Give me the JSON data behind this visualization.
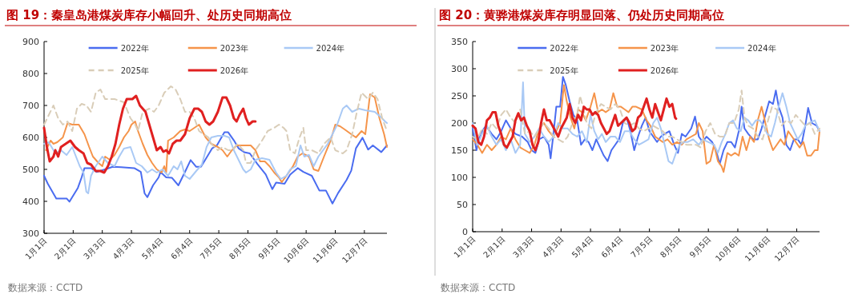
{
  "chart_data": [
    {
      "type": "line",
      "title": "图 19：秦皇岛港煤炭库存小幅回升、处历史同期高位",
      "annotations": [
        "数据来源：CCTD"
      ],
      "legend": "top",
      "grid": false,
      "xlim": [
        "--01-01",
        "--12-31"
      ],
      "ylim": [
        300,
        900
      ],
      "yticks": [
        300,
        400,
        500,
        600,
        700,
        800,
        900
      ],
      "xticks": [
        {
          "value": "--01-01",
          "label": "1月1日"
        },
        {
          "value": "--02-01",
          "label": "2月1日"
        },
        {
          "value": "--03-03",
          "label": "3月3日"
        },
        {
          "value": "--04-03",
          "label": "4月3日"
        },
        {
          "value": "--05-04",
          "label": "5月4日"
        },
        {
          "value": "--06-04",
          "label": "6月4日"
        },
        {
          "value": "--07-05",
          "label": "7月5日"
        },
        {
          "value": "--08-05",
          "label": "8月5日"
        },
        {
          "value": "--09-05",
          "label": "9月5日"
        },
        {
          "value": "--10-06",
          "label": "10月6日"
        },
        {
          "value": "--11-06",
          "label": "11月6日"
        },
        {
          "value": "--12-07",
          "label": "12月7日"
        }
      ],
      "series": [
        {
          "name": "2022年",
          "color": "#4a6cf0",
          "x": [
            "--01-01",
            "--01-05",
            "--01-14",
            "--01-25",
            "--01-28",
            "--02-06",
            "--02-10",
            "--02-13",
            "--02-20",
            "--02-26",
            "--03-08",
            "--03-14",
            "--03-23",
            "--04-06",
            "--04-13",
            "--04-17",
            "--04-20",
            "--04-26",
            "--05-02",
            "--05-04",
            "--05-10",
            "--05-16",
            "--05-23",
            "--05-30",
            "--06-05",
            "--06-11",
            "--06-16",
            "--06-22",
            "--06-28",
            "--07-03",
            "--07-11",
            "--07-15",
            "--07-21",
            "--07-26",
            "--08-01",
            "--08-07",
            "--08-15",
            "--08-24",
            "--08-31",
            "--09-04",
            "--09-13",
            "--09-19",
            "--09-27",
            "--10-03",
            "--10-12",
            "--10-20",
            "--10-27",
            "--11-03",
            "--11-09",
            "--11-18",
            "--11-23",
            "--11-28",
            "--12-05",
            "--12-11",
            "--12-16",
            "--12-25",
            "--12-31"
          ],
          "values": [
            480,
            455,
            409,
            409,
            399,
            442,
            475,
            504,
            504,
            492,
            502,
            508,
            507,
            504,
            492,
            425,
            413,
            450,
            475,
            492,
            475,
            474,
            450,
            492,
            529,
            508,
            508,
            537,
            566,
            575,
            616,
            616,
            591,
            566,
            554,
            550,
            517,
            484,
            438,
            459,
            455,
            484,
            504,
            492,
            480,
            434,
            434,
            393,
            426,
            467,
            496,
            566,
            599,
            562,
            575,
            554,
            575
          ]
        },
        {
          "name": "2023年",
          "color": "#f5944a",
          "x": [
            "--01-03",
            "--01-08",
            "--01-11",
            "--01-15",
            "--01-21",
            "--01-26",
            "--01-31",
            "--02-07",
            "--02-13",
            "--02-18",
            "--02-22",
            "--02-28",
            "--03-03",
            "--03-06",
            "--03-11",
            "--03-16",
            "--03-21",
            "--03-26",
            "--03-31",
            "--04-03",
            "--04-07",
            "--04-10",
            "--04-15",
            "--04-20",
            "--04-25",
            "--04-30",
            "--05-05",
            "--05-08",
            "--05-10",
            "--05-12",
            "--05-18",
            "--05-25",
            "--05-30",
            "--06-04",
            "--06-09",
            "--06-14",
            "--06-21",
            "--06-27",
            "--07-04",
            "--07-09",
            "--07-14",
            "--07-19",
            "--07-24",
            "--07-31",
            "--08-08",
            "--08-13",
            "--08-18",
            "--08-23",
            "--08-28",
            "--09-02",
            "--09-07",
            "--09-10",
            "--09-15",
            "--09-22",
            "--09-27",
            "--10-02",
            "--10-09",
            "--10-14",
            "--10-19",
            "--10-25",
            "--11-01",
            "--11-06",
            "--11-11",
            "--11-16",
            "--11-23",
            "--11-28",
            "--12-04",
            "--12-08",
            "--12-13",
            "--12-18",
            "--12-23",
            "--12-28",
            "--12-31"
          ],
          "values": [
            560,
            590,
            580,
            585,
            600,
            645,
            640,
            640,
            610,
            570,
            540,
            520,
            510,
            540,
            530,
            545,
            570,
            600,
            620,
            640,
            650,
            620,
            580,
            545,
            520,
            500,
            490,
            510,
            490,
            590,
            600,
            620,
            625,
            620,
            630,
            640,
            600,
            580,
            570,
            560,
            540,
            560,
            575,
            575,
            575,
            560,
            525,
            525,
            510,
            490,
            475,
            460,
            480,
            510,
            540,
            550,
            540,
            500,
            495,
            540,
            590,
            640,
            635,
            625,
            610,
            600,
            620,
            610,
            735,
            725,
            660,
            610,
            570
          ]
        },
        {
          "name": "2024年",
          "color": "#a9c9f5",
          "x": [
            "--01-01",
            "--01-06",
            "--01-13",
            "--01-19",
            "--01-25",
            "--01-31",
            "--02-08",
            "--02-12",
            "--02-15",
            "--02-17",
            "--02-20",
            "--02-25",
            "--03-03",
            "--03-09",
            "--03-16",
            "--03-21",
            "--03-26",
            "--04-02",
            "--04-08",
            "--04-14",
            "--04-20",
            "--04-25",
            "--04-30",
            "--05-06",
            "--05-12",
            "--05-18",
            "--05-22",
            "--05-26",
            "--05-30",
            "--06-04",
            "--06-11",
            "--06-17",
            "--06-22",
            "--06-27",
            "--07-04",
            "--07-11",
            "--07-16",
            "--07-21",
            "--07-26",
            "--07-31",
            "--08-03",
            "--08-08",
            "--08-13",
            "--08-20",
            "--08-28",
            "--09-04",
            "--09-09",
            "--09-15",
            "--09-19",
            "--09-25",
            "--09-30",
            "--10-04",
            "--10-09",
            "--10-14",
            "--10-19",
            "--10-24",
            "--10-29",
            "--11-03",
            "--11-08",
            "--11-14",
            "--11-18",
            "--11-24",
            "--12-01",
            "--12-08",
            "--12-18",
            "--12-24",
            "--12-29",
            "--12-31"
          ],
          "values": [
            580,
            585,
            550,
            560,
            545,
            570,
            510,
            490,
            430,
            425,
            480,
            510,
            540,
            520,
            510,
            540,
            565,
            570,
            520,
            510,
            490,
            500,
            490,
            500,
            480,
            510,
            500,
            525,
            480,
            470,
            495,
            515,
            570,
            600,
            605,
            605,
            600,
            560,
            530,
            500,
            490,
            500,
            530,
            535,
            530,
            490,
            470,
            480,
            500,
            510,
            575,
            540,
            545,
            510,
            540,
            560,
            580,
            610,
            640,
            690,
            700,
            680,
            690,
            685,
            680,
            665,
            650,
            645
          ]
        },
        {
          "name": "2025年",
          "color": "#d9cdb8",
          "line_style": "dashed",
          "x": [
            "--01-01",
            "--01-06",
            "--01-11",
            "--01-16",
            "--01-21",
            "--01-26",
            "--01-31",
            "--02-05",
            "--02-10",
            "--02-15",
            "--02-20",
            "--02-25",
            "--03-01",
            "--03-06",
            "--03-16",
            "--03-26",
            "--04-02",
            "--04-07",
            "--04-10",
            "--04-15",
            "--04-22",
            "--04-27",
            "--05-02",
            "--05-08",
            "--05-15",
            "--05-20",
            "--05-25",
            "--05-30",
            "--06-04",
            "--06-09",
            "--06-14",
            "--06-19",
            "--06-24",
            "--06-27",
            "--07-04",
            "--07-09",
            "--07-15",
            "--07-19",
            "--07-25",
            "--07-31",
            "--08-03",
            "--08-08",
            "--08-13",
            "--08-20",
            "--08-26",
            "--09-02",
            "--09-07",
            "--09-12",
            "--09-15",
            "--09-19",
            "--09-24",
            "--09-29",
            "--10-03",
            "--10-06",
            "--10-12",
            "--10-19",
            "--10-25",
            "--11-01",
            "--11-06",
            "--11-14",
            "--11-18",
            "--11-24",
            "--11-29",
            "--12-04",
            "--12-11",
            "--12-16",
            "--12-21",
            "--12-26",
            "--12-31"
          ],
          "values": [
            640,
            670,
            700,
            660,
            640,
            650,
            620,
            690,
            705,
            700,
            680,
            740,
            750,
            720,
            720,
            710,
            660,
            640,
            620,
            680,
            690,
            680,
            700,
            740,
            760,
            750,
            720,
            680,
            680,
            660,
            620,
            610,
            600,
            580,
            560,
            570,
            560,
            560,
            580,
            560,
            520,
            520,
            560,
            590,
            620,
            630,
            640,
            630,
            620,
            560,
            550,
            600,
            630,
            560,
            560,
            550,
            580,
            600,
            560,
            550,
            560,
            610,
            680,
            740,
            720,
            740,
            720,
            660,
            620
          ]
        },
        {
          "name": "2026年",
          "color": "#e02020",
          "x": [
            "--01-01",
            "--01-04",
            "--01-07",
            "--01-11",
            "--01-13",
            "--01-16",
            "--01-19",
            "--01-24",
            "--01-29",
            "--02-03",
            "--02-07",
            "--02-12",
            "--02-16",
            "--02-20",
            "--02-25",
            "--03-01",
            "--03-05",
            "--03-09",
            "--03-13",
            "--03-17",
            "--03-21",
            "--03-25",
            "--03-29",
            "--04-04",
            "--04-08",
            "--04-12",
            "--04-18",
            "--04-22",
            "--04-26",
            "--04-30",
            "--05-04",
            "--05-07",
            "--05-10",
            "--05-13",
            "--05-17",
            "--05-21",
            "--05-25",
            "--05-30",
            "--06-04",
            "--06-09",
            "--06-13",
            "--06-17",
            "--06-21",
            "--06-25",
            "--06-29",
            "--07-04",
            "--07-09",
            "--07-13",
            "--07-17",
            "--07-21",
            "--07-24",
            "--07-27",
            "--07-31",
            "--08-03",
            "--08-06",
            "--08-10",
            "--08-13"
          ],
          "values": [
            630,
            570,
            525,
            540,
            560,
            540,
            570,
            580,
            590,
            570,
            560,
            550,
            520,
            515,
            495,
            495,
            490,
            510,
            540,
            580,
            640,
            690,
            720,
            720,
            730,
            700,
            680,
            640,
            600,
            560,
            570,
            555,
            560,
            550,
            580,
            590,
            590,
            610,
            660,
            690,
            690,
            680,
            650,
            640,
            650,
            680,
            725,
            725,
            700,
            660,
            650,
            670,
            690,
            660,
            640,
            650,
            650
          ]
        }
      ]
    },
    {
      "type": "line",
      "title": "图 20：黄骅港煤炭库存明显回落、仍处历史同期高位",
      "annotations": [
        "数据来源：CCTD"
      ],
      "legend": "top",
      "grid": false,
      "xlim": [
        "--01-01",
        "--12-31"
      ],
      "ylim": [
        0,
        350
      ],
      "yticks": [
        0,
        50,
        100,
        150,
        200,
        250,
        300,
        350
      ],
      "xticks": [
        {
          "value": "--01-01",
          "label": "1月1日"
        },
        {
          "value": "--02-01",
          "label": "2月1日"
        },
        {
          "value": "--03-03",
          "label": "3月3日"
        },
        {
          "value": "--04-03",
          "label": "4月3日"
        },
        {
          "value": "--05-04",
          "label": "5月4日"
        },
        {
          "value": "--06-04",
          "label": "6月4日"
        },
        {
          "value": "--07-05",
          "label": "7月5日"
        },
        {
          "value": "--08-05",
          "label": "8月5日"
        },
        {
          "value": "--09-05",
          "label": "9月5日"
        },
        {
          "value": "--10-06",
          "label": "10月6日"
        },
        {
          "value": "--11-06",
          "label": "11月6日"
        },
        {
          "value": "--12-07",
          "label": "12月7日"
        }
      ],
      "series": [
        {
          "name": "2022年",
          "color": "#4a6cf0",
          "x": [
            "--01-01",
            "--01-05",
            "--01-09",
            "--01-15",
            "--01-21",
            "--01-26",
            "--01-31",
            "--02-05",
            "--02-10",
            "--02-15",
            "--02-22",
            "--02-28",
            "--03-03",
            "--03-07",
            "--03-11",
            "--03-16",
            "--03-21",
            "--03-23",
            "--03-26",
            "--03-29",
            "--04-02",
            "--04-05",
            "--04-08",
            "--04-12",
            "--04-16",
            "--04-20",
            "--04-24",
            "--04-28",
            "--05-02",
            "--05-06",
            "--05-10",
            "--05-14",
            "--05-18",
            "--05-22",
            "--05-26",
            "--05-30",
            "--06-03",
            "--06-07",
            "--06-11",
            "--06-15",
            "--06-19",
            "--06-23",
            "--06-27",
            "--07-01",
            "--07-05",
            "--07-09",
            "--07-13",
            "--07-17",
            "--07-21",
            "--07-26",
            "--07-31",
            "--08-04",
            "--08-08",
            "--08-12",
            "--08-18",
            "--08-22",
            "--08-26",
            "--08-30",
            "--09-03",
            "--09-09",
            "--09-13",
            "--09-17",
            "--09-21",
            "--09-25",
            "--09-29",
            "--10-03",
            "--10-07",
            "--10-10",
            "--10-13",
            "--10-17",
            "--10-22",
            "--10-27",
            "--10-31",
            "--11-04",
            "--11-08",
            "--11-12",
            "--11-15",
            "--11-18",
            "--11-22",
            "--11-26",
            "--11-30",
            "--12-04",
            "--12-08",
            "--12-12",
            "--12-16",
            "--12-19",
            "--12-23",
            "--12-28",
            "--12-31"
          ],
          "values": [
            190,
            150,
            180,
            195,
            180,
            170,
            185,
            205,
            190,
            180,
            175,
            165,
            150,
            145,
            170,
            175,
            160,
            135,
            180,
            230,
            230,
            285,
            270,
            240,
            215,
            205,
            160,
            170,
            165,
            150,
            170,
            155,
            140,
            130,
            150,
            160,
            170,
            200,
            210,
            185,
            150,
            175,
            195,
            210,
            185,
            175,
            165,
            175,
            180,
            185,
            160,
            145,
            180,
            175,
            190,
            212,
            175,
            165,
            175,
            165,
            150,
            125,
            150,
            165,
            165,
            155,
            185,
            230,
            190,
            180,
            170,
            170,
            190,
            215,
            240,
            235,
            260,
            230,
            210,
            160,
            150,
            170,
            170,
            160,
            195,
            228,
            200,
            195,
            185
          ]
        },
        {
          "name": "2023年",
          "color": "#f5944a",
          "x": [
            "--01-01",
            "--01-06",
            "--01-11",
            "--01-16",
            "--01-21",
            "--01-26",
            "--01-31",
            "--02-05",
            "--02-10",
            "--02-15",
            "--02-20",
            "--02-25",
            "--03-01",
            "--03-06",
            "--03-11",
            "--03-16",
            "--03-21",
            "--03-26",
            "--03-29",
            "--04-02",
            "--04-06",
            "--04-09",
            "--04-13",
            "--04-17",
            "--04-21",
            "--04-25",
            "--04-29",
            "--05-04",
            "--05-08",
            "--05-12",
            "--05-16",
            "--05-20",
            "--05-24",
            "--05-28",
            "--06-01",
            "--06-05",
            "--06-09",
            "--06-13",
            "--06-17",
            "--06-21",
            "--06-27",
            "--07-02",
            "--07-06",
            "--07-11",
            "--07-15",
            "--07-19",
            "--07-24",
            "--07-29",
            "--08-03",
            "--08-08",
            "--08-13",
            "--08-18",
            "--08-23",
            "--08-26",
            "--08-30",
            "--09-03",
            "--09-07",
            "--09-11",
            "--09-15",
            "--09-19",
            "--09-21",
            "--09-25",
            "--09-29",
            "--10-03",
            "--10-07",
            "--10-11",
            "--10-15",
            "--10-19",
            "--10-23",
            "--10-27",
            "--10-31",
            "--11-04",
            "--11-08",
            "--11-12",
            "--11-16",
            "--11-20",
            "--11-24",
            "--11-28",
            "--12-02",
            "--12-06",
            "--12-10",
            "--12-14",
            "--12-18",
            "--12-22",
            "--12-26",
            "--12-29",
            "--12-31"
          ],
          "values": [
            170,
            160,
            145,
            160,
            150,
            160,
            175,
            170,
            190,
            170,
            155,
            150,
            145,
            160,
            190,
            200,
            185,
            175,
            185,
            200,
            270,
            240,
            210,
            190,
            225,
            220,
            205,
            230,
            255,
            220,
            225,
            220,
            225,
            255,
            230,
            230,
            225,
            220,
            230,
            230,
            225,
            205,
            195,
            175,
            170,
            165,
            170,
            160,
            165,
            160,
            170,
            175,
            180,
            200,
            185,
            125,
            130,
            160,
            130,
            120,
            110,
            145,
            140,
            145,
            140,
            175,
            150,
            175,
            165,
            205,
            230,
            200,
            170,
            150,
            160,
            170,
            160,
            185,
            175,
            165,
            155,
            165,
            140,
            140,
            150,
            150,
            185
          ]
        },
        {
          "name": "2024年",
          "color": "#a9c9f5",
          "x": [
            "--01-01",
            "--01-06",
            "--01-11",
            "--01-16",
            "--01-21",
            "--01-26",
            "--01-31",
            "--02-05",
            "--02-10",
            "--02-15",
            "--02-20",
            "--02-23",
            "--02-25",
            "--03-01",
            "--03-06",
            "--03-11",
            "--03-16",
            "--03-21",
            "--03-26",
            "--03-31",
            "--04-05",
            "--04-10",
            "--04-15",
            "--04-20",
            "--04-25",
            "--04-30",
            "--05-04",
            "--05-08",
            "--05-12",
            "--05-16",
            "--05-20",
            "--05-25",
            "--05-30",
            "--06-04",
            "--06-09",
            "--06-14",
            "--06-19",
            "--06-24",
            "--06-29",
            "--07-04",
            "--07-09",
            "--07-13",
            "--07-17",
            "--07-21",
            "--07-25",
            "--07-29",
            "--08-02",
            "--08-06",
            "--08-10",
            "--08-14",
            "--08-20",
            "--08-26",
            "--08-30",
            "--09-05",
            "--09-11",
            "--09-15",
            "--09-19",
            "--09-23",
            "--09-27",
            "--10-01",
            "--10-05",
            "--10-09",
            "--10-13",
            "--10-17",
            "--10-21",
            "--10-25",
            "--10-29",
            "--11-02",
            "--11-06",
            "--11-10",
            "--11-14",
            "--11-18",
            "--11-22",
            "--11-26",
            "--11-30",
            "--12-04",
            "--12-08",
            "--12-12",
            "--12-16",
            "--12-20",
            "--12-26",
            "--12-31"
          ],
          "values": [
            200,
            160,
            180,
            195,
            175,
            160,
            170,
            150,
            170,
            145,
            160,
            275,
            180,
            165,
            175,
            190,
            175,
            165,
            175,
            200,
            190,
            190,
            180,
            175,
            185,
            165,
            215,
            185,
            170,
            180,
            165,
            175,
            175,
            165,
            185,
            185,
            170,
            160,
            165,
            170,
            200,
            210,
            190,
            160,
            130,
            125,
            145,
            160,
            165,
            165,
            170,
            160,
            170,
            165,
            160,
            145,
            165,
            180,
            200,
            205,
            190,
            185,
            210,
            205,
            195,
            205,
            205,
            195,
            180,
            175,
            200,
            230,
            255,
            230,
            200,
            185,
            170,
            180,
            195,
            200,
            205,
            185
          ]
        },
        {
          "name": "2025年",
          "color": "#d9cdb8",
          "line_style": "dashed",
          "x": [
            "--01-01",
            "--01-06",
            "--01-11",
            "--01-16",
            "--01-21",
            "--01-26",
            "--01-31",
            "--02-05",
            "--02-10",
            "--02-15",
            "--02-20",
            "--02-25",
            "--03-01",
            "--03-06",
            "--03-11",
            "--03-16",
            "--03-21",
            "--03-26",
            "--03-31",
            "--04-05",
            "--04-10",
            "--04-15",
            "--04-20",
            "--04-23",
            "--04-26",
            "--04-30",
            "--05-05",
            "--05-10",
            "--05-15",
            "--05-20",
            "--05-25",
            "--05-30",
            "--06-04",
            "--06-09",
            "--06-14",
            "--06-19",
            "--06-24",
            "--06-29",
            "--07-04",
            "--07-09",
            "--07-14",
            "--07-19",
            "--07-24",
            "--07-29",
            "--08-03",
            "--08-08",
            "--08-13",
            "--08-18",
            "--08-23",
            "--08-28",
            "--09-02",
            "--09-07",
            "--09-12",
            "--09-17",
            "--09-22",
            "--09-27",
            "--10-02",
            "--10-07",
            "--10-10",
            "--10-13",
            "--10-17",
            "--10-22",
            "--10-27",
            "--11-01",
            "--11-06",
            "--11-11",
            "--11-16",
            "--11-21",
            "--11-26",
            "--12-01",
            "--12-06",
            "--12-11",
            "--12-16",
            "--12-21",
            "--12-26",
            "--12-31"
          ],
          "values": [
            175,
            170,
            190,
            180,
            200,
            190,
            215,
            225,
            210,
            200,
            225,
            180,
            185,
            175,
            190,
            200,
            190,
            175,
            170,
            165,
            175,
            200,
            215,
            250,
            230,
            200,
            190,
            220,
            235,
            230,
            225,
            235,
            225,
            200,
            195,
            200,
            190,
            185,
            190,
            195,
            190,
            185,
            175,
            175,
            170,
            165,
            160,
            160,
            160,
            155,
            185,
            200,
            180,
            175,
            175,
            200,
            200,
            225,
            260,
            210,
            195,
            190,
            175,
            170,
            200,
            230,
            225,
            195,
            205,
            200,
            215,
            205,
            195,
            200,
            180,
            190
          ]
        },
        {
          "name": "2026年",
          "color": "#e02020",
          "x": [
            "--01-01",
            "--01-04",
            "--01-07",
            "--01-10",
            "--01-13",
            "--01-16",
            "--01-19",
            "--01-22",
            "--01-25",
            "--01-28",
            "--01-31",
            "--02-03",
            "--02-06",
            "--02-09",
            "--02-12",
            "--02-15",
            "--02-18",
            "--02-21",
            "--02-24",
            "--02-27",
            "--03-01",
            "--03-04",
            "--03-07",
            "--03-10",
            "--03-13",
            "--03-16",
            "--03-19",
            "--03-22",
            "--03-25",
            "--03-28",
            "--03-31",
            "--04-03",
            "--04-06",
            "--04-09",
            "--04-12",
            "--04-15",
            "--04-18",
            "--04-21",
            "--04-24",
            "--04-27",
            "--04-30",
            "--05-03",
            "--05-06",
            "--05-09",
            "--05-12",
            "--05-15",
            "--05-18",
            "--05-21",
            "--05-24",
            "--05-27",
            "--05-30",
            "--06-02",
            "--06-05",
            "--06-08",
            "--06-11",
            "--06-14",
            "--06-17",
            "--06-20",
            "--06-23",
            "--06-26",
            "--06-29",
            "--07-02",
            "--07-05",
            "--07-08",
            "--07-11",
            "--07-14",
            "--07-17",
            "--07-20",
            "--07-23",
            "--07-26",
            "--07-29",
            "--08-01",
            "--08-02"
          ],
          "values": [
            195,
            190,
            165,
            160,
            175,
            205,
            210,
            220,
            220,
            195,
            180,
            160,
            155,
            165,
            175,
            205,
            218,
            205,
            210,
            195,
            185,
            160,
            150,
            165,
            200,
            225,
            205,
            205,
            195,
            185,
            175,
            190,
            200,
            210,
            235,
            210,
            200,
            215,
            205,
            230,
            225,
            225,
            215,
            220,
            215,
            200,
            190,
            180,
            185,
            200,
            215,
            195,
            200,
            205,
            210,
            200,
            185,
            190,
            210,
            215,
            230,
            245,
            225,
            210,
            235,
            220,
            205,
            225,
            245,
            230,
            235,
            210,
            208
          ]
        }
      ]
    }
  ]
}
